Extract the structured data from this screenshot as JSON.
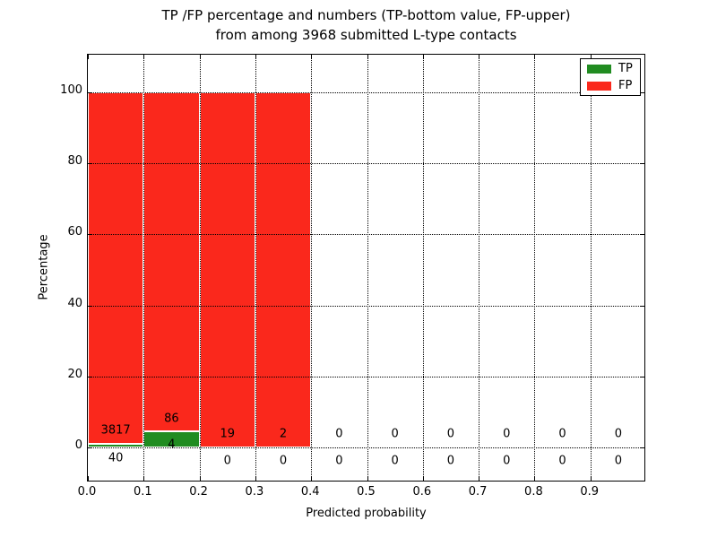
{
  "figure": {
    "title_line1": "TP /FP percentage and numbers (TP-bottom value, FP-upper)",
    "title_line2": "from among 3968 submitted L-type contacts",
    "xlabel": "Predicted probability",
    "ylabel": "Percentage"
  },
  "legend": {
    "items": [
      {
        "label": "TP",
        "color": "#218c21"
      },
      {
        "label": "FP",
        "color": "#fa281c"
      }
    ]
  },
  "chart_data": {
    "type": "bar",
    "stacked": true,
    "title": "TP /FP percentage and numbers (TP-bottom value, FP-upper) from among 3968 submitted L-type contacts",
    "xlabel": "Predicted probability",
    "ylabel": "Percentage",
    "total_contacts": 3968,
    "bin_width": 0.1,
    "bin_starts": [
      0.0,
      0.1,
      0.2,
      0.3,
      0.4,
      0.5,
      0.6,
      0.7,
      0.8,
      0.9
    ],
    "xtick_labels": [
      "0.0",
      "0.1",
      "0.2",
      "0.3",
      "0.4",
      "0.5",
      "0.6",
      "0.7",
      "0.8",
      "0.9"
    ],
    "ytick_values": [
      0,
      20,
      40,
      60,
      80,
      100
    ],
    "xlim": [
      0.0,
      1.0
    ],
    "ylim": [
      -10,
      110.5
    ],
    "grid": {
      "style": "dotted",
      "color": "#000000",
      "over_bars": true
    },
    "legend_position": "upper right",
    "bar_edge_color": "#ffffff",
    "series": [
      {
        "name": "TP",
        "color": "#218c21",
        "counts": [
          40,
          4,
          0,
          0,
          0,
          0,
          0,
          0,
          0,
          0
        ],
        "pct": [
          1.04,
          4.44,
          0,
          0,
          0,
          0,
          0,
          0,
          0,
          0
        ]
      },
      {
        "name": "FP",
        "color": "#fa281c",
        "counts": [
          3817,
          86,
          19,
          2,
          0,
          0,
          0,
          0,
          0,
          0
        ],
        "pct": [
          98.96,
          95.56,
          100,
          100,
          0,
          0,
          0,
          0,
          0,
          0
        ]
      }
    ],
    "label_layout": {
      "fp_label_pct": [
        4.8,
        8.1,
        3.8,
        3.8,
        3.8,
        3.8,
        3.8,
        3.8,
        3.8,
        3.8
      ],
      "tp_label_pct": [
        -3.0,
        0.8,
        -3.8,
        -3.8,
        -3.8,
        -3.8,
        -3.8,
        -3.8,
        -3.8,
        -3.8
      ]
    }
  }
}
